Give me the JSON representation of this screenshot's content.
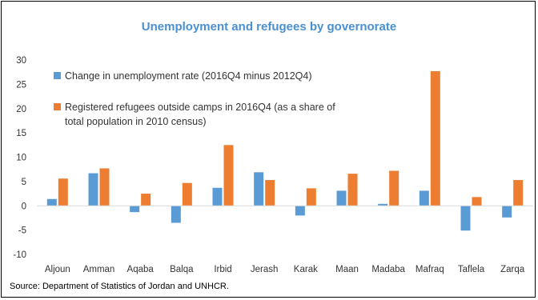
{
  "chart_data": {
    "type": "bar",
    "title": "Unemployment and refugees by governorate",
    "xlabel": "",
    "ylabel": "",
    "ylim": [
      -10,
      30
    ],
    "yticks": [
      30,
      25,
      20,
      15,
      10,
      5,
      0,
      -5,
      -10
    ],
    "grid": false,
    "legend_position": "top-left",
    "categories": [
      "Aljoun",
      "Amman",
      "Aqaba",
      "Balqa",
      "Irbid",
      "Jerash",
      "Karak",
      "Maan",
      "Madaba",
      "Mafraq",
      "Taflela",
      "Zarqa"
    ],
    "series": [
      {
        "name": "Change in unemployment rate (2016Q4 minus 2012Q4)",
        "color": "#5b9bd5",
        "values": [
          1.4,
          6.7,
          -1.3,
          -3.5,
          3.7,
          6.9,
          -2.0,
          3.1,
          0.4,
          3.1,
          -5.1,
          -2.4
        ]
      },
      {
        "name": "Registered refugees outside camps in 2016Q4 (as a share of total population in 2010 census)",
        "color": "#ed7d31",
        "values": [
          5.6,
          7.7,
          2.5,
          4.7,
          12.5,
          5.3,
          3.6,
          6.6,
          7.2,
          27.7,
          1.8,
          5.3
        ]
      }
    ],
    "legend": [
      {
        "lines": [
          "Change in unemployment rate (2016Q4 minus 2012Q4)"
        ]
      },
      {
        "lines": [
          "Registered refugees outside camps in 2016Q4 (as a share of",
          "total population in 2010 census)"
        ]
      }
    ]
  },
  "source_note": "Source: Department of Statistics of Jordan and UNHCR."
}
